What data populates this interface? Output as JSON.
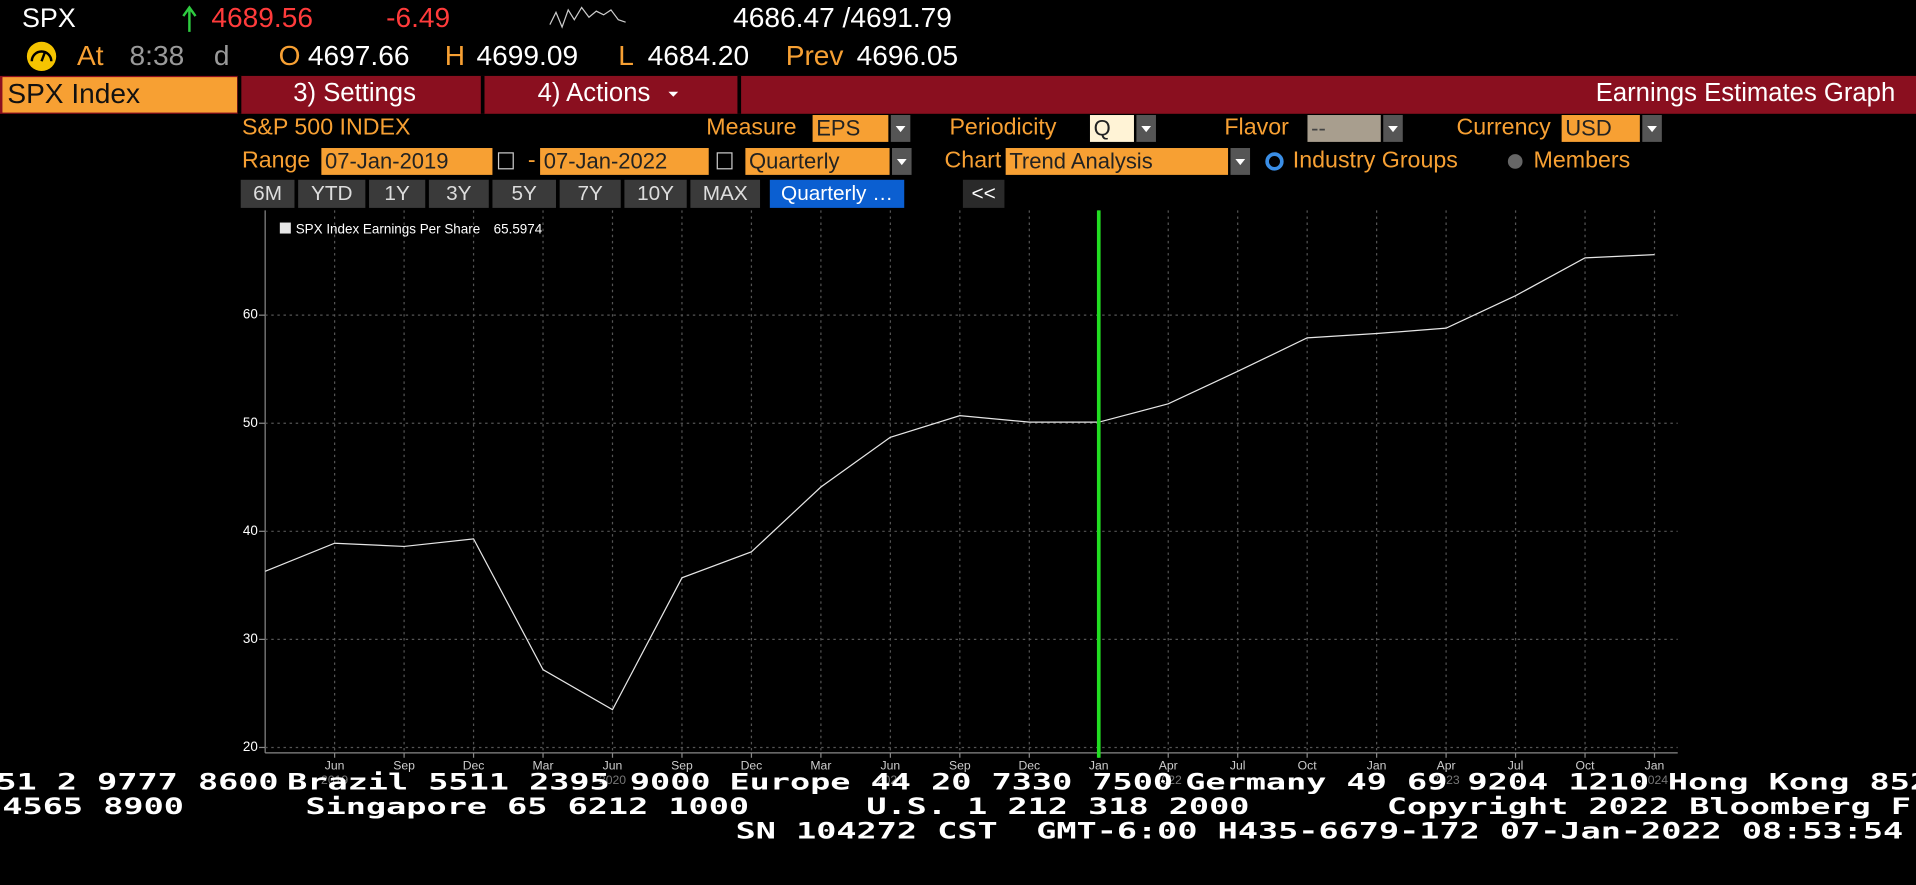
{
  "header": {
    "symbol": "SPX",
    "last": "4689.56",
    "change": "-6.49",
    "bid_ask": "4686.47 /4691.79",
    "at_label": "At",
    "time": "8:38",
    "time_flag": "d",
    "open_label": "O",
    "open": "4697.66",
    "high_label": "H",
    "high": "4699.09",
    "low_label": "L",
    "low": "4684.20",
    "prev_label": "Prev",
    "prev": "4696.05"
  },
  "menu": {
    "security": "SPX Index",
    "settings": "3) Settings",
    "actions": "4) Actions",
    "function_title": "Earnings Estimates Graph"
  },
  "controls": {
    "index_name": "S&P 500 INDEX",
    "measure_label": "Measure",
    "measure": "EPS",
    "periodicity_label": "Periodicity",
    "periodicity": "Q",
    "flavor_label": "Flavor",
    "flavor": "--",
    "currency_label": "Currency",
    "currency": "USD",
    "range_label": "Range",
    "start_date": "07-Jan-2019",
    "date_separator": "-",
    "end_date": "07-Jan-2022",
    "frequency": "Quarterly",
    "chart_label": "Chart",
    "chart_mode": "Trend Analysis",
    "option_industry": "Industry Groups",
    "option_members": "Members",
    "periods": [
      "6M",
      "YTD",
      "1Y",
      "3Y",
      "5Y",
      "7Y",
      "10Y",
      "MAX"
    ],
    "active_period": "Quarterly …",
    "collapse": "<<"
  },
  "chart_data": {
    "type": "line",
    "categories": [
      null,
      "Jun",
      "Sep",
      "Dec",
      "Mar",
      "Jun",
      "Sep",
      "Dec",
      "Mar",
      "Jun",
      "Sep",
      "Dec",
      "Jan",
      "Apr",
      "Jul",
      "Oct",
      "Jan",
      "Apr",
      "Jul",
      "Oct",
      "Jan"
    ],
    "years": [
      null,
      "2019",
      null,
      null,
      null,
      "2020",
      null,
      null,
      null,
      "2021",
      null,
      null,
      null,
      "2022",
      null,
      null,
      null,
      "2023",
      null,
      null,
      "2024"
    ],
    "series": [
      {
        "name": "SPX Index Earnings Per Share",
        "color": "#e6e6e6",
        "values": [
          36.3,
          38.9,
          38.6,
          39.3,
          27.2,
          23.5,
          35.7,
          38.1,
          44.1,
          48.7,
          50.7,
          50.1,
          50.1,
          51.8,
          54.8,
          57.9,
          58.3,
          58.8,
          61.8,
          65.3,
          65.6
        ]
      }
    ],
    "legend_value": "65.5974",
    "ylim": [
      19.5,
      69.7
    ],
    "yticks": [
      20,
      30,
      40,
      50,
      60
    ],
    "grid": true,
    "marker": {
      "at": 12,
      "color": "#22dd22"
    }
  },
  "footer": {
    "lines": [
      [
        "51 2 9777 8600",
        "Brazil 5511 2395 9000",
        "Europe 44 20 7330 7500",
        "Germany 49 69 9204 1210",
        "Hong Kong 852"
      ],
      [
        "4565 8900",
        "Singapore 65 6212 1000",
        "U.S. 1 212 318 2000",
        "Copyright 2022 Bloomberg F"
      ],
      [
        "SN 104272 CST",
        "GMT-6:00 H435-6679-172 07-Jan-2022 08:53:54"
      ]
    ]
  }
}
